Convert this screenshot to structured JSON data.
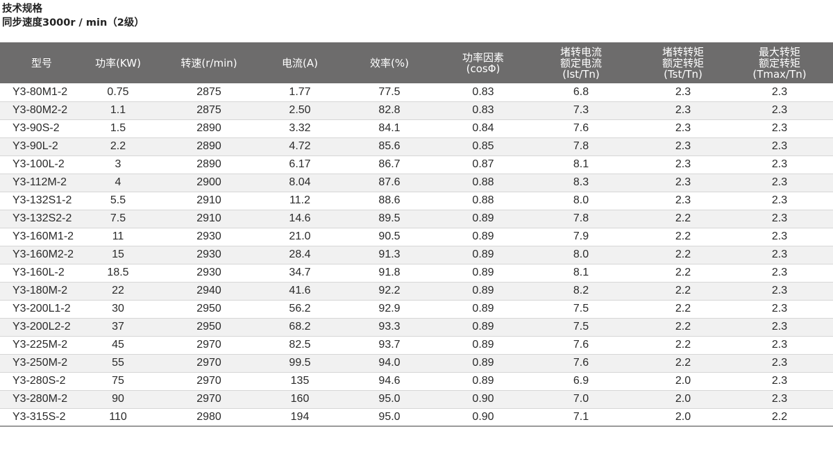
{
  "heading": {
    "title": "技术规格",
    "subtitle": "同步速度3000r / min（2级）"
  },
  "columns": [
    {
      "lines": [
        "型号"
      ]
    },
    {
      "lines": [
        "功率(KW)"
      ]
    },
    {
      "lines": [
        "转速(r/min)"
      ]
    },
    {
      "lines": [
        "电流(A)"
      ]
    },
    {
      "lines": [
        "效率(%)"
      ]
    },
    {
      "lines": [
        "功率因素",
        "(cosΦ)"
      ]
    },
    {
      "lines": [
        "堵转电流",
        "额定电流",
        "(Ist/Tn)"
      ]
    },
    {
      "lines": [
        "堵转转矩",
        "额定转矩",
        "(Tst/Tn)"
      ]
    },
    {
      "lines": [
        "最大转矩",
        "额定转矩",
        "(Tmax/Tn)"
      ]
    }
  ],
  "rows": [
    [
      "Y3-80M1-2",
      "0.75",
      "2875",
      "1.77",
      "77.5",
      "0.83",
      "6.8",
      "2.3",
      "2.3"
    ],
    [
      "Y3-80M2-2",
      "1.1",
      "2875",
      "2.50",
      "82.8",
      "0.83",
      "7.3",
      "2.3",
      "2.3"
    ],
    [
      "Y3-90S-2",
      "1.5",
      "2890",
      "3.32",
      "84.1",
      "0.84",
      "7.6",
      "2.3",
      "2.3"
    ],
    [
      "Y3-90L-2",
      "2.2",
      "2890",
      "4.72",
      "85.6",
      "0.85",
      "7.8",
      "2.3",
      "2.3"
    ],
    [
      "Y3-100L-2",
      "3",
      "2890",
      "6.17",
      "86.7",
      "0.87",
      "8.1",
      "2.3",
      "2.3"
    ],
    [
      "Y3-112M-2",
      "4",
      "2900",
      "8.04",
      "87.6",
      "0.88",
      "8.3",
      "2.3",
      "2.3"
    ],
    [
      "Y3-132S1-2",
      "5.5",
      "2910",
      "11.2",
      "88.6",
      "0.88",
      "8.0",
      "2.3",
      "2.3"
    ],
    [
      "Y3-132S2-2",
      "7.5",
      "2910",
      "14.6",
      "89.5",
      "0.89",
      "7.8",
      "2.2",
      "2.3"
    ],
    [
      "Y3-160M1-2",
      "11",
      "2930",
      "21.0",
      "90.5",
      "0.89",
      "7.9",
      "2.2",
      "2.3"
    ],
    [
      "Y3-160M2-2",
      "15",
      "2930",
      "28.4",
      "91.3",
      "0.89",
      "8.0",
      "2.2",
      "2.3"
    ],
    [
      "Y3-160L-2",
      "18.5",
      "2930",
      "34.7",
      "91.8",
      "0.89",
      "8.1",
      "2.2",
      "2.3"
    ],
    [
      "Y3-180M-2",
      "22",
      "2940",
      "41.6",
      "92.2",
      "0.89",
      "8.2",
      "2.2",
      "2.3"
    ],
    [
      "Y3-200L1-2",
      "30",
      "2950",
      "56.2",
      "92.9",
      "0.89",
      "7.5",
      "2.2",
      "2.3"
    ],
    [
      "Y3-200L2-2",
      "37",
      "2950",
      "68.2",
      "93.3",
      "0.89",
      "7.5",
      "2.2",
      "2.3"
    ],
    [
      "Y3-225M-2",
      "45",
      "2970",
      "82.5",
      "93.7",
      "0.89",
      "7.6",
      "2.2",
      "2.3"
    ],
    [
      "Y3-250M-2",
      "55",
      "2970",
      "99.5",
      "94.0",
      "0.89",
      "7.6",
      "2.2",
      "2.3"
    ],
    [
      "Y3-280S-2",
      "75",
      "2970",
      "135",
      "94.6",
      "0.89",
      "6.9",
      "2.0",
      "2.3"
    ],
    [
      "Y3-280M-2",
      "90",
      "2970",
      "160",
      "95.0",
      "0.90",
      "7.0",
      "2.0",
      "2.3"
    ],
    [
      "Y3-315S-2",
      "110",
      "2980",
      "194",
      "95.0",
      "0.90",
      "7.1",
      "2.0",
      "2.2"
    ]
  ]
}
